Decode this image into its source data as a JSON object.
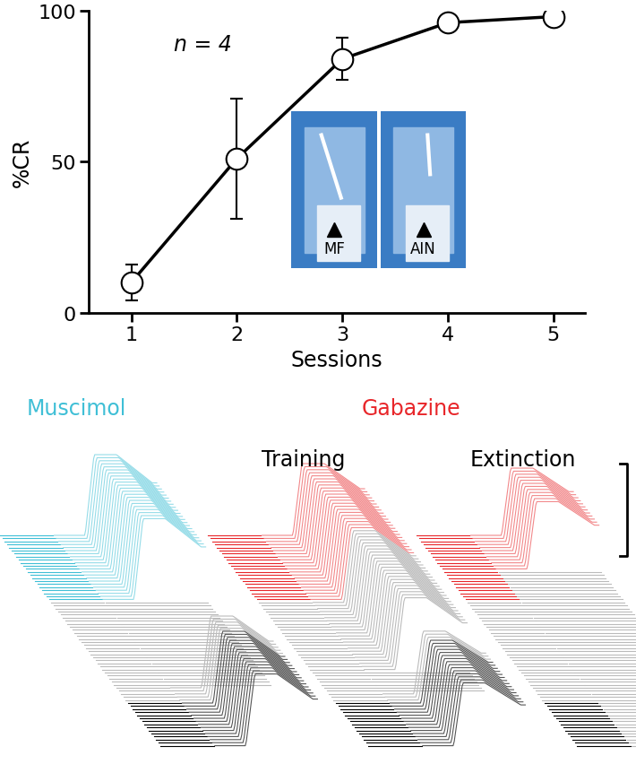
{
  "chart_data": {
    "type": "line",
    "x": [
      1,
      2,
      3,
      4,
      5
    ],
    "values": [
      10,
      51,
      84,
      96,
      98
    ],
    "errors": [
      6,
      20,
      7,
      0,
      0
    ],
    "xlim": [
      0.6,
      5.3
    ],
    "xticks": [
      1,
      2,
      3,
      4,
      5
    ],
    "ylim": [
      0,
      100
    ],
    "yticks": [
      0,
      50,
      100
    ],
    "x_label": "Sessions",
    "y_label": "%CR",
    "annotation": "n = 4",
    "color": "#000000",
    "marker": "o"
  },
  "inset": {
    "labels": [
      "MF",
      "AIN"
    ]
  },
  "traces": {
    "groups": [
      {
        "drug": "Muscimol",
        "color": "#3fbfd6"
      },
      {
        "drug": "Gabazine",
        "color": "#e8262a",
        "phases": [
          "Training",
          "Extinction"
        ]
      }
    ]
  }
}
